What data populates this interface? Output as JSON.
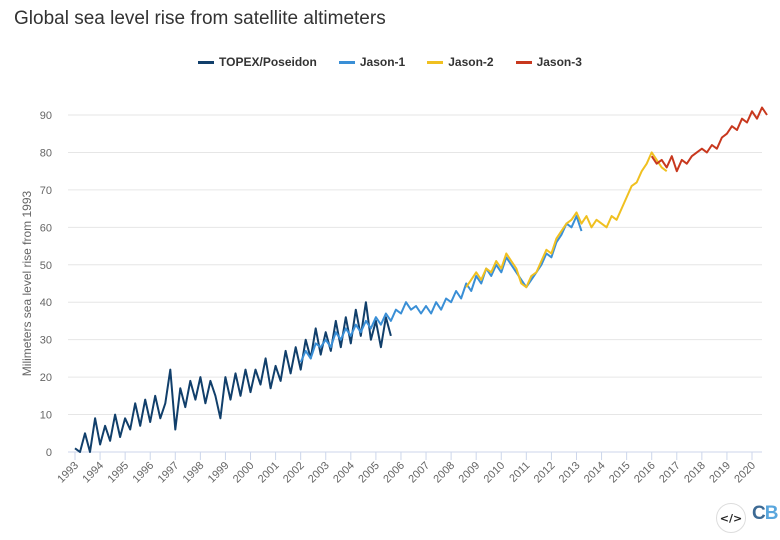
{
  "chart_data": {
    "type": "line",
    "title": "Global sea level rise from satellite altimeters",
    "ylabel": "Milimeters sea level rise from 1993",
    "xlabel": "",
    "ylim": [
      0,
      95
    ],
    "xlim": [
      1992.3,
      2020.9
    ],
    "yticks": [
      0,
      10,
      20,
      30,
      40,
      50,
      60,
      70,
      80,
      90
    ],
    "xticks": [
      1993,
      1994,
      1995,
      1996,
      1997,
      1998,
      1999,
      2000,
      2001,
      2002,
      2003,
      2004,
      2005,
      2006,
      2007,
      2008,
      2009,
      2010,
      2011,
      2012,
      2013,
      2014,
      2015,
      2016,
      2017,
      2018,
      2019,
      2020
    ],
    "grid": "horizontal",
    "legend_position": "top-center",
    "series": [
      {
        "name": "TOPEX/Poseidon",
        "color": "#113f6b",
        "points": [
          [
            1993.0,
            1
          ],
          [
            1993.2,
            -1
          ],
          [
            1993.4,
            5
          ],
          [
            1993.6,
            0
          ],
          [
            1993.8,
            9
          ],
          [
            1994.0,
            2
          ],
          [
            1994.2,
            7
          ],
          [
            1994.4,
            3
          ],
          [
            1994.6,
            10
          ],
          [
            1994.8,
            4
          ],
          [
            1995.0,
            9
          ],
          [
            1995.2,
            6
          ],
          [
            1995.4,
            13
          ],
          [
            1995.6,
            7
          ],
          [
            1995.8,
            14
          ],
          [
            1996.0,
            8
          ],
          [
            1996.2,
            15
          ],
          [
            1996.4,
            9
          ],
          [
            1996.6,
            13
          ],
          [
            1996.8,
            22
          ],
          [
            1997.0,
            6
          ],
          [
            1997.2,
            17
          ],
          [
            1997.4,
            12
          ],
          [
            1997.6,
            19
          ],
          [
            1997.8,
            14
          ],
          [
            1998.0,
            20
          ],
          [
            1998.2,
            13
          ],
          [
            1998.4,
            19
          ],
          [
            1998.6,
            15
          ],
          [
            1998.8,
            9
          ],
          [
            1999.0,
            20
          ],
          [
            1999.2,
            14
          ],
          [
            1999.4,
            21
          ],
          [
            1999.6,
            15
          ],
          [
            1999.8,
            22
          ],
          [
            2000.0,
            16
          ],
          [
            2000.2,
            22
          ],
          [
            2000.4,
            18
          ],
          [
            2000.6,
            25
          ],
          [
            2000.8,
            17
          ],
          [
            2001.0,
            23
          ],
          [
            2001.2,
            19
          ],
          [
            2001.4,
            27
          ],
          [
            2001.6,
            21
          ],
          [
            2001.8,
            28
          ],
          [
            2002.0,
            22
          ],
          [
            2002.2,
            30
          ],
          [
            2002.4,
            25
          ],
          [
            2002.6,
            33
          ],
          [
            2002.8,
            26
          ],
          [
            2003.0,
            32
          ],
          [
            2003.2,
            27
          ],
          [
            2003.4,
            35
          ],
          [
            2003.6,
            28
          ],
          [
            2003.8,
            36
          ],
          [
            2004.0,
            29
          ],
          [
            2004.2,
            38
          ],
          [
            2004.4,
            31
          ],
          [
            2004.6,
            40
          ],
          [
            2004.8,
            30
          ],
          [
            2005.0,
            35
          ],
          [
            2005.2,
            28
          ],
          [
            2005.4,
            36
          ],
          [
            2005.6,
            31
          ]
        ]
      },
      {
        "name": "Jason-1",
        "color": "#3a8fd6",
        "points": [
          [
            2002.0,
            24
          ],
          [
            2002.2,
            27
          ],
          [
            2002.4,
            25
          ],
          [
            2002.6,
            29
          ],
          [
            2002.8,
            28
          ],
          [
            2003.0,
            30
          ],
          [
            2003.2,
            28
          ],
          [
            2003.4,
            32
          ],
          [
            2003.6,
            30
          ],
          [
            2003.8,
            33
          ],
          [
            2004.0,
            31
          ],
          [
            2004.2,
            34
          ],
          [
            2004.4,
            32
          ],
          [
            2004.6,
            35
          ],
          [
            2004.8,
            33
          ],
          [
            2005.0,
            36
          ],
          [
            2005.2,
            34
          ],
          [
            2005.4,
            37
          ],
          [
            2005.6,
            35
          ],
          [
            2005.8,
            38
          ],
          [
            2006.0,
            37
          ],
          [
            2006.2,
            40
          ],
          [
            2006.4,
            38
          ],
          [
            2006.6,
            39
          ],
          [
            2006.8,
            37
          ],
          [
            2007.0,
            39
          ],
          [
            2007.2,
            37
          ],
          [
            2007.4,
            40
          ],
          [
            2007.6,
            38
          ],
          [
            2007.8,
            41
          ],
          [
            2008.0,
            40
          ],
          [
            2008.2,
            43
          ],
          [
            2008.4,
            41
          ],
          [
            2008.6,
            45
          ],
          [
            2008.8,
            43
          ],
          [
            2009.0,
            47
          ],
          [
            2009.2,
            45
          ],
          [
            2009.4,
            49
          ],
          [
            2009.6,
            47
          ],
          [
            2009.8,
            50
          ],
          [
            2010.0,
            48
          ],
          [
            2010.2,
            52
          ],
          [
            2010.4,
            50
          ],
          [
            2010.6,
            48
          ],
          [
            2010.8,
            46
          ],
          [
            2011.0,
            44
          ],
          [
            2011.2,
            46
          ],
          [
            2011.4,
            48
          ],
          [
            2011.6,
            50
          ],
          [
            2011.8,
            53
          ],
          [
            2012.0,
            52
          ],
          [
            2012.2,
            56
          ],
          [
            2012.4,
            58
          ],
          [
            2012.6,
            61
          ],
          [
            2012.8,
            60
          ],
          [
            2013.0,
            63
          ],
          [
            2013.2,
            59
          ]
        ]
      },
      {
        "name": "Jason-2",
        "color": "#f0c020",
        "points": [
          [
            2008.6,
            44
          ],
          [
            2008.8,
            46
          ],
          [
            2009.0,
            48
          ],
          [
            2009.2,
            46
          ],
          [
            2009.4,
            49
          ],
          [
            2009.6,
            48
          ],
          [
            2009.8,
            51
          ],
          [
            2010.0,
            49
          ],
          [
            2010.2,
            53
          ],
          [
            2010.4,
            51
          ],
          [
            2010.6,
            49
          ],
          [
            2010.8,
            45
          ],
          [
            2011.0,
            44
          ],
          [
            2011.2,
            47
          ],
          [
            2011.4,
            48
          ],
          [
            2011.6,
            51
          ],
          [
            2011.8,
            54
          ],
          [
            2012.0,
            53
          ],
          [
            2012.2,
            57
          ],
          [
            2012.4,
            59
          ],
          [
            2012.6,
            61
          ],
          [
            2012.8,
            62
          ],
          [
            2013.0,
            64
          ],
          [
            2013.2,
            61
          ],
          [
            2013.4,
            63
          ],
          [
            2013.6,
            60
          ],
          [
            2013.8,
            62
          ],
          [
            2014.0,
            61
          ],
          [
            2014.2,
            60
          ],
          [
            2014.4,
            63
          ],
          [
            2014.6,
            62
          ],
          [
            2014.8,
            65
          ],
          [
            2015.0,
            68
          ],
          [
            2015.2,
            71
          ],
          [
            2015.4,
            72
          ],
          [
            2015.6,
            75
          ],
          [
            2015.8,
            77
          ],
          [
            2016.0,
            80
          ],
          [
            2016.2,
            78
          ],
          [
            2016.4,
            76
          ],
          [
            2016.6,
            75
          ]
        ]
      },
      {
        "name": "Jason-3",
        "color": "#c8381e",
        "points": [
          [
            2016.0,
            79
          ],
          [
            2016.2,
            77
          ],
          [
            2016.4,
            78
          ],
          [
            2016.6,
            76
          ],
          [
            2016.8,
            79
          ],
          [
            2017.0,
            75
          ],
          [
            2017.2,
            78
          ],
          [
            2017.4,
            77
          ],
          [
            2017.6,
            79
          ],
          [
            2017.8,
            80
          ],
          [
            2018.0,
            81
          ],
          [
            2018.2,
            80
          ],
          [
            2018.4,
            82
          ],
          [
            2018.6,
            81
          ],
          [
            2018.8,
            84
          ],
          [
            2019.0,
            85
          ],
          [
            2019.2,
            87
          ],
          [
            2019.4,
            86
          ],
          [
            2019.6,
            89
          ],
          [
            2019.8,
            88
          ],
          [
            2020.0,
            91
          ],
          [
            2020.2,
            89
          ],
          [
            2020.4,
            92
          ],
          [
            2020.6,
            90
          ]
        ]
      }
    ]
  },
  "footer": {
    "embed_icon": "code-icon",
    "embed_label": "</>",
    "logo_c": "C",
    "logo_b": "B",
    "logo_colors": [
      "#3d6a94",
      "#59a6dd"
    ]
  }
}
